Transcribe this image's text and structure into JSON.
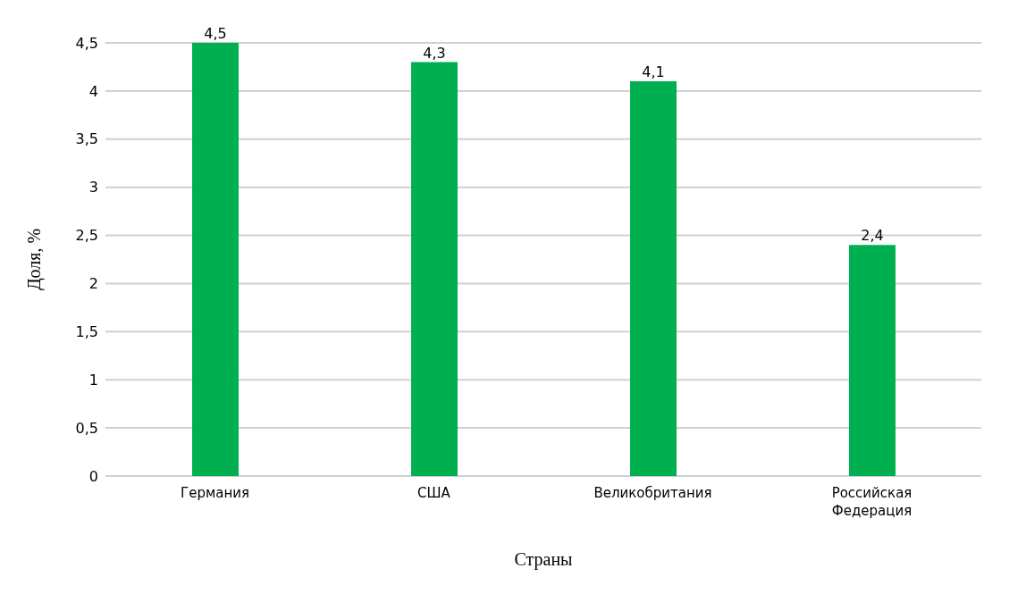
{
  "chart_data": {
    "type": "bar",
    "xlabel": "Страны",
    "ylabel": "Доля, %",
    "categories": [
      "Германия",
      "США",
      "Великобритания",
      "Российская Федерация"
    ],
    "values": [
      4.5,
      4.3,
      4.1,
      2.4
    ],
    "value_labels": [
      "4,5",
      "4,3",
      "4,1",
      "2,4"
    ],
    "color": "#00b050",
    "ylim": [
      0,
      4.5
    ],
    "yticks": [
      0,
      {
        "value": 0.5,
        "label": "0,5"
      },
      1,
      {
        "value": 1.5,
        "label": "1,5"
      },
      2,
      {
        "value": 2.5,
        "label": "2,5"
      },
      3,
      {
        "value": 3.5,
        "label": "3,5"
      },
      4,
      {
        "value": 4.5,
        "label": "4,5"
      }
    ],
    "grid": "y"
  }
}
